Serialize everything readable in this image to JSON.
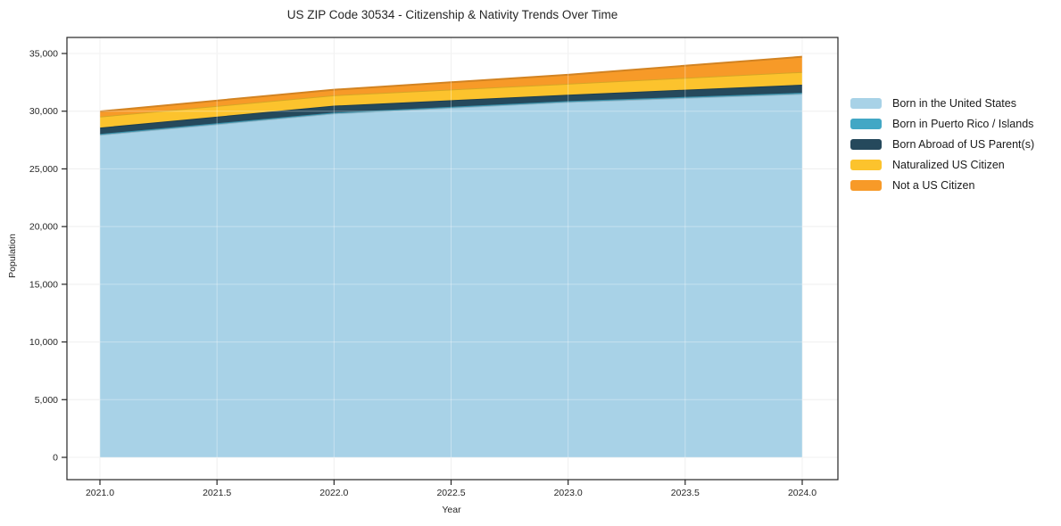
{
  "title": "US ZIP Code 30534 - Citizenship & Nativity Trends Over Time",
  "chart_data": {
    "type": "area",
    "stacked": true,
    "title": "US ZIP Code 30534 - Citizenship & Nativity Trends Over Time",
    "xlabel": "Year",
    "ylabel": "Population",
    "x": [
      2021,
      2022,
      2023,
      2024
    ],
    "series": [
      {
        "name": "Born in the United States",
        "color": "#a8d2e7",
        "values": [
          27950,
          29800,
          30800,
          31500
        ]
      },
      {
        "name": "Born in Puerto Rico / Islands",
        "color": "#42a7c5",
        "values": [
          80,
          80,
          80,
          100
        ]
      },
      {
        "name": "Born Abroad of US Parent(s)",
        "color": "#25495c",
        "values": [
          550,
          600,
          550,
          700
        ]
      },
      {
        "name": "Naturalized US Citizen",
        "color": "#fcc32d",
        "values": [
          950,
          900,
          950,
          1100
        ]
      },
      {
        "name": "Not a US Citizen",
        "color": "#f79a28",
        "values": [
          450,
          480,
          780,
          1320
        ]
      }
    ],
    "x_ticks": [
      2021.0,
      2021.5,
      2022.0,
      2022.5,
      2023.0,
      2023.5,
      2024.0
    ],
    "x_tick_labels": [
      "2021.0",
      "2021.5",
      "2022.0",
      "2022.5",
      "2023.0",
      "2023.5",
      "2024.0"
    ],
    "y_ticks": [
      0,
      5000,
      10000,
      15000,
      20000,
      25000,
      30000,
      35000
    ],
    "y_tick_labels": [
      "0",
      "5,000",
      "10,000",
      "15,000",
      "20,000",
      "25,000",
      "30,000",
      "35,000"
    ],
    "ylim": [
      0,
      35000
    ],
    "xlim": [
      2021,
      2024
    ],
    "grid": true,
    "legend_position": "right-outside",
    "axis_color": "#262626",
    "grid_color": "#e9e9e9",
    "background": "#ffffff"
  }
}
